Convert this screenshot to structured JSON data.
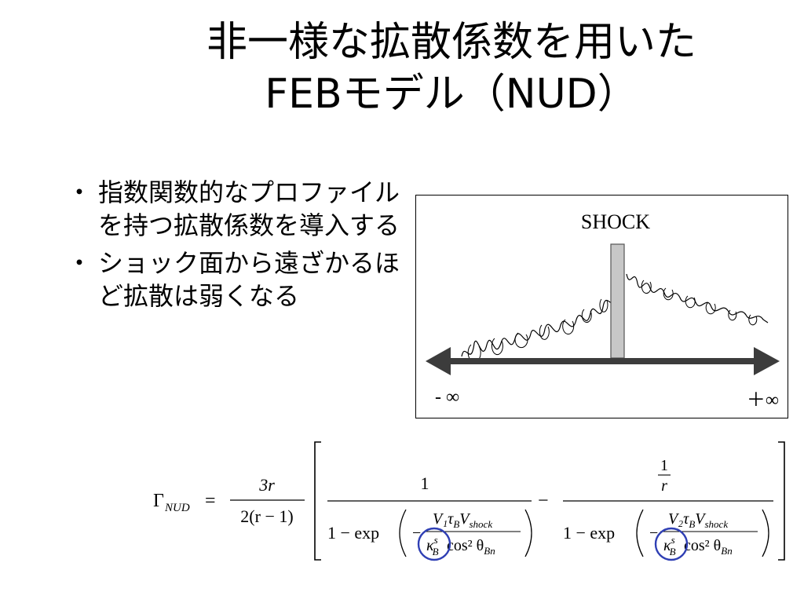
{
  "slide": {
    "title_line1": "非一様な拡散係数を用いた",
    "title_line2": "FEBモデル（NUD）"
  },
  "bullets": [
    {
      "marker": "・",
      "text": "指数関数的なプロファイルを持つ拡散係数を導入する"
    },
    {
      "marker": "・",
      "text": "ショック面から遠ざかるほど拡散は弱くなる"
    }
  ],
  "figure": {
    "shock_label": "SHOCK",
    "left_label": "- ∞",
    "right_label": "＋∞",
    "colors": {
      "shock_bar": "#c7c7c7",
      "arrow": "#3c3c3c"
    }
  },
  "formula": {
    "lhs": "Γ",
    "lhs_sub": "NUD",
    "eq": "=",
    "coef_num": "3r",
    "coef_den": "2(r − 1)",
    "term1_num": "1",
    "term2_num": "1",
    "term2_num_den": "r",
    "minus": "−",
    "one_minus_exp": "1 − exp",
    "term1_exp_num": "V₁τ",
    "term2_exp_num": "V₂τ",
    "sub_B": "B",
    "V": "V",
    "shock_sub": "shock",
    "kappa": "κ",
    "kappa_sup": "s",
    "cos_part": "cos² θ",
    "Bn": "Bn",
    "neg": "−",
    "highlight_color": "#2f3fb4"
  }
}
